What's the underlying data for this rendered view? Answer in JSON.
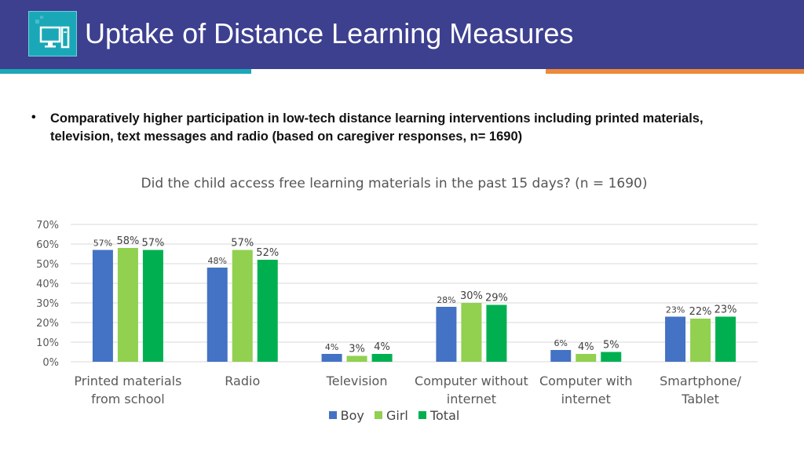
{
  "header": {
    "title": "Uptake of Distance Learning Measures",
    "logo_icon": "computer-monitor-icon",
    "colors": {
      "banner": "#3d3f8f",
      "logo_bg": "#1aa8b8",
      "accent_left": "#1aa8b8",
      "accent_right": "#ee8a3a"
    }
  },
  "summary": {
    "bullet": "•",
    "text": "Comparatively higher participation in low-tech distance learning interventions including printed materials, television, text messages and radio (based on caregiver responses, n= 1690)"
  },
  "chart_data": {
    "type": "bar",
    "title": "Did the child access free learning materials in the past 15 days? (n = 1690)",
    "xlabel": "",
    "ylabel": "",
    "ylim": [
      0,
      70
    ],
    "yticks": [
      "0%",
      "10%",
      "20%",
      "30%",
      "40%",
      "50%",
      "60%",
      "70%"
    ],
    "grid": true,
    "legend_position": "bottom",
    "categories": [
      [
        "Printed materials",
        "from school"
      ],
      [
        "Radio"
      ],
      [
        "Television"
      ],
      [
        "Computer without",
        "internet"
      ],
      [
        "Computer with",
        "internet"
      ],
      [
        "Smartphone/",
        "Tablet"
      ]
    ],
    "series": [
      {
        "name": "Boy",
        "color": "#4472c4",
        "values": [
          57,
          48,
          4,
          28,
          6,
          23
        ],
        "labels": [
          "57%",
          "48%",
          "4%",
          "28%",
          "6%",
          "23%"
        ]
      },
      {
        "name": "Girl",
        "color": "#92d050",
        "values": [
          58,
          57,
          3,
          30,
          4,
          22
        ],
        "labels": [
          "58%",
          "57%",
          "3%",
          "30%",
          "4%",
          "22%"
        ]
      },
      {
        "name": "Total",
        "color": "#00b050",
        "values": [
          57,
          52,
          4,
          29,
          5,
          23
        ],
        "labels": [
          "57%",
          "52%",
          "4%",
          "29%",
          "5%",
          "23%"
        ]
      }
    ]
  }
}
